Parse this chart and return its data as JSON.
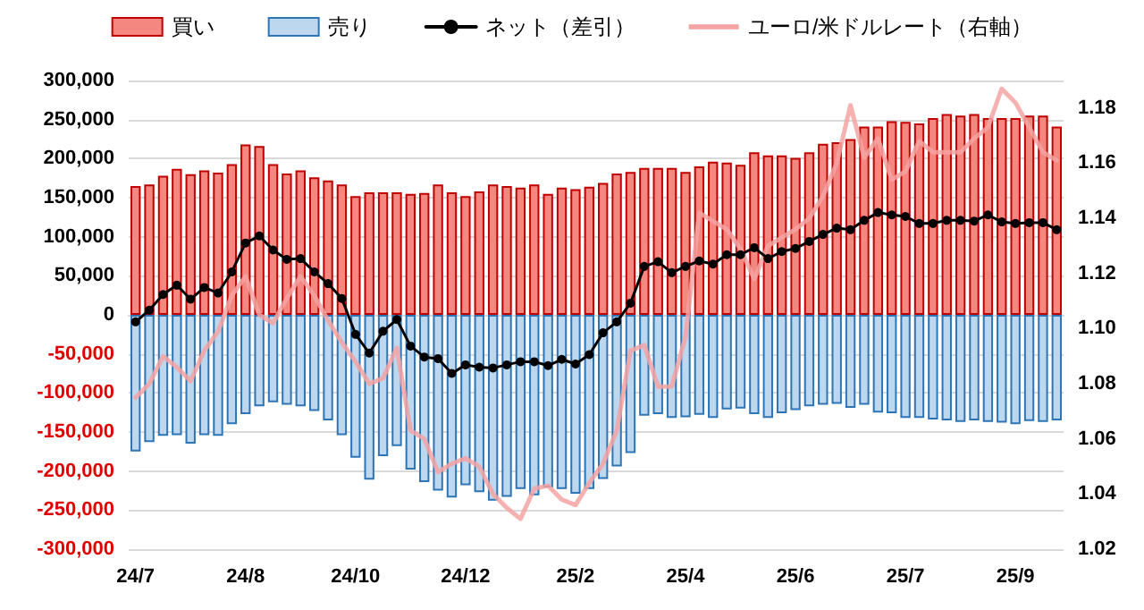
{
  "chart_data": {
    "type": "bar",
    "stacked": true,
    "legend": "top",
    "grid": "y",
    "categories": [
      "24/7",
      null,
      null,
      null,
      null,
      null,
      null,
      null,
      "24/8",
      null,
      null,
      null,
      null,
      null,
      null,
      null,
      "24/10",
      null,
      null,
      null,
      null,
      null,
      null,
      null,
      "24/12",
      null,
      null,
      null,
      null,
      null,
      null,
      null,
      "25/2",
      null,
      null,
      null,
      null,
      null,
      null,
      null,
      "25/4",
      null,
      null,
      null,
      null,
      null,
      null,
      null,
      "25/6",
      null,
      null,
      null,
      null,
      null,
      null,
      null,
      "25/7",
      null,
      null,
      null,
      null,
      null,
      null,
      null,
      "25/9",
      null,
      null,
      null
    ],
    "ylim": [
      -300000,
      300000
    ],
    "yticks": [
      {
        "value": -300000,
        "label": "-300,000"
      },
      {
        "value": -250000,
        "label": "-250,000"
      },
      {
        "value": -200000,
        "label": "-200,000"
      },
      {
        "value": -150000,
        "label": "-150,000"
      },
      {
        "value": -100000,
        "label": "-100,000"
      },
      {
        "value": -50000,
        "label": "-50,000"
      },
      0,
      {
        "value": 50000,
        "label": "50,000"
      },
      {
        "value": 100000,
        "label": "100,000"
      },
      {
        "value": 150000,
        "label": "150,000"
      },
      {
        "value": 200000,
        "label": "200,000"
      },
      {
        "value": 250000,
        "label": "250,000"
      },
      {
        "value": 300000,
        "label": "300,000"
      }
    ],
    "y2lim": [
      1.02,
      1.19
    ],
    "y2ticks": [
      1.02,
      1.04,
      1.06,
      1.08,
      {
        "value": 1.1,
        "label": "1.10"
      },
      1.12,
      1.14,
      1.16,
      1.18
    ],
    "series": [
      {
        "name": "買い",
        "color": "#f4877f",
        "values": [
          165000,
          167000,
          178000,
          187000,
          180000,
          185000,
          182000,
          193000,
          218000,
          216000,
          193000,
          181000,
          185000,
          176000,
          172000,
          167000,
          152000,
          157000,
          157000,
          157000,
          155000,
          156000,
          167000,
          157000,
          152000,
          158000,
          167000,
          165000,
          163000,
          167000,
          155000,
          163000,
          161000,
          164000,
          169000,
          181000,
          183000,
          188000,
          188000,
          188000,
          183000,
          190000,
          196000,
          195000,
          192000,
          208000,
          204000,
          204000,
          201000,
          208000,
          219000,
          221000,
          225000,
          241000,
          241000,
          248000,
          247000,
          245000,
          252000,
          257000,
          255000,
          257000,
          252000,
          252000,
          252000,
          255000,
          255000,
          241000
        ]
      },
      {
        "name": "売り",
        "color": "#bdd7ee",
        "values": [
          -175000,
          -163000,
          -155000,
          -154000,
          -165000,
          -154000,
          -155000,
          -140000,
          -127000,
          -117000,
          -112000,
          -115000,
          -117000,
          -123000,
          -135000,
          -154000,
          -183000,
          -211000,
          -181000,
          -168000,
          -198000,
          -214000,
          -225000,
          -234000,
          -218000,
          -227000,
          -238000,
          -233000,
          -223000,
          -231000,
          -221000,
          -223000,
          -229000,
          -223000,
          -210000,
          -194000,
          -177000,
          -129000,
          -127000,
          -132000,
          -131000,
          -128000,
          -132000,
          -121000,
          -120000,
          -127000,
          -132000,
          -126000,
          -122000,
          -117000,
          -115000,
          -114000,
          -119000,
          -115000,
          -125000,
          -126000,
          -132000,
          -132000,
          -134000,
          -135000,
          -137000,
          -135000,
          -137000,
          -138000,
          -140000,
          -136000,
          -137000,
          -135000
        ]
      },
      {
        "name": "ネット（差引）",
        "type": "line",
        "marker": "circle",
        "color": "#000000",
        "values": [
          -9000,
          6000,
          26000,
          38000,
          20000,
          35000,
          28000,
          55000,
          92000,
          101000,
          83000,
          71000,
          72000,
          55000,
          40000,
          21000,
          -25000,
          -49000,
          -21000,
          -6000,
          -40000,
          -54000,
          -56000,
          -75000,
          -64000,
          -67000,
          -68000,
          -64000,
          -60000,
          -60000,
          -65000,
          -57000,
          -63000,
          -51000,
          -23000,
          -9000,
          15000,
          62000,
          68000,
          54000,
          62000,
          69000,
          65000,
          77000,
          77000,
          86000,
          72000,
          81000,
          85000,
          94000,
          103000,
          111000,
          109000,
          121000,
          131000,
          128000,
          126000,
          117000,
          117000,
          121000,
          121000,
          120000,
          128000,
          119000,
          117000,
          118000,
          118000,
          109000
        ]
      },
      {
        "name": "ユーロ/米ドルレート（右軸）",
        "type": "line",
        "axis": "y2",
        "marker": "none",
        "color": "#f5a3a3",
        "values": [
          1.075,
          1.08,
          1.09,
          1.086,
          1.081,
          1.092,
          1.099,
          1.112,
          1.119,
          1.105,
          1.102,
          1.111,
          1.119,
          1.112,
          1.103,
          1.095,
          1.088,
          1.08,
          1.082,
          1.093,
          1.063,
          1.06,
          1.048,
          1.051,
          1.053,
          1.05,
          1.04,
          1.035,
          1.031,
          1.042,
          1.043,
          1.038,
          1.036,
          1.044,
          1.051,
          1.063,
          1.092,
          1.094,
          1.079,
          1.079,
          1.097,
          1.142,
          1.139,
          1.136,
          1.129,
          1.118,
          1.13,
          1.133,
          1.136,
          1.14,
          1.148,
          1.16,
          1.181,
          1.162,
          1.169,
          1.154,
          1.157,
          1.168,
          1.164,
          1.164,
          1.164,
          1.169,
          1.173,
          1.187,
          1.182,
          1.173,
          1.164,
          1.161
        ]
      }
    ]
  }
}
